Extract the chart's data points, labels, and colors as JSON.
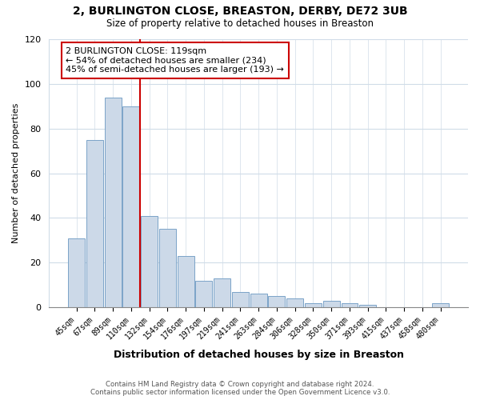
{
  "title": "2, BURLINGTON CLOSE, BREASTON, DERBY, DE72 3UB",
  "subtitle": "Size of property relative to detached houses in Breaston",
  "xlabel": "Distribution of detached houses by size in Breaston",
  "ylabel": "Number of detached properties",
  "bar_color": "#ccd9e8",
  "bar_edge_color": "#7ba3c8",
  "categories": [
    "45sqm",
    "67sqm",
    "89sqm",
    "110sqm",
    "132sqm",
    "154sqm",
    "176sqm",
    "197sqm",
    "219sqm",
    "241sqm",
    "263sqm",
    "284sqm",
    "306sqm",
    "328sqm",
    "350sqm",
    "371sqm",
    "393sqm",
    "415sqm",
    "437sqm",
    "458sqm",
    "480sqm"
  ],
  "values": [
    31,
    75,
    94,
    90,
    41,
    35,
    23,
    12,
    13,
    7,
    6,
    5,
    4,
    2,
    3,
    2,
    1,
    0,
    0,
    0,
    2
  ],
  "vline_x_index": 3.5,
  "vline_color": "#cc0000",
  "annotation_title": "2 BURLINGTON CLOSE: 119sqm",
  "annotation_line1": "← 54% of detached houses are smaller (234)",
  "annotation_line2": "45% of semi-detached houses are larger (193) →",
  "annotation_box_color": "#ffffff",
  "annotation_box_edge": "#cc0000",
  "ylim": [
    0,
    120
  ],
  "yticks": [
    0,
    20,
    40,
    60,
    80,
    100,
    120
  ],
  "footer1": "Contains HM Land Registry data © Crown copyright and database right 2024.",
  "footer2": "Contains public sector information licensed under the Open Government Licence v3.0.",
  "background_color": "#ffffff",
  "plot_background": "#ffffff",
  "grid_color": "#d0dce8"
}
